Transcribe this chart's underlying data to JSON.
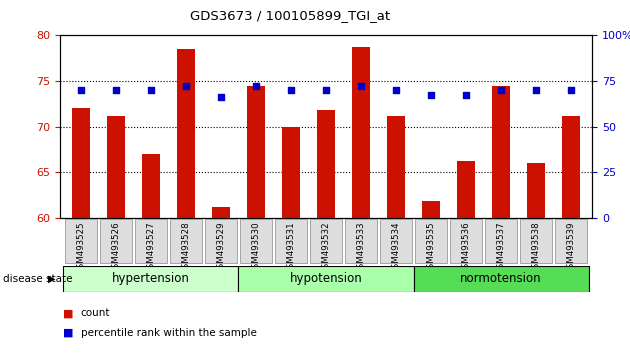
{
  "title": "GDS3673 / 100105899_TGI_at",
  "samples": [
    "GSM493525",
    "GSM493526",
    "GSM493527",
    "GSM493528",
    "GSM493529",
    "GSM493530",
    "GSM493531",
    "GSM493532",
    "GSM493533",
    "GSM493534",
    "GSM493535",
    "GSM493536",
    "GSM493537",
    "GSM493538",
    "GSM493539"
  ],
  "counts": [
    72.0,
    71.2,
    67.0,
    78.5,
    61.2,
    74.5,
    70.0,
    71.8,
    78.7,
    71.2,
    61.8,
    66.2,
    74.5,
    66.0,
    71.2
  ],
  "percentiles": [
    74.0,
    74.0,
    74.0,
    74.5,
    73.2,
    74.5,
    74.0,
    74.0,
    74.5,
    74.0,
    73.5,
    73.5,
    74.0,
    74.0,
    74.0
  ],
  "groups": [
    {
      "label": "hypertension",
      "start": 0,
      "end": 4,
      "color": "#ccffcc"
    },
    {
      "label": "hypotension",
      "start": 5,
      "end": 9,
      "color": "#aaffaa"
    },
    {
      "label": "normotension",
      "start": 10,
      "end": 14,
      "color": "#55dd55"
    }
  ],
  "ylim_left": [
    60,
    80
  ],
  "ylim_right": [
    0,
    100
  ],
  "yticks_left": [
    60,
    65,
    70,
    75,
    80
  ],
  "yticks_right": [
    0,
    25,
    50,
    75,
    100
  ],
  "bar_color": "#cc1100",
  "dot_color": "#0000cc",
  "bar_width": 0.5,
  "background_color": "#ffffff",
  "grid_color": "#000000",
  "disease_state_label": "disease state",
  "legend_count_label": "count",
  "legend_percentile_label": "percentile rank within the sample",
  "tick_bg_color": "#dddddd",
  "tick_border_color": "#888888"
}
